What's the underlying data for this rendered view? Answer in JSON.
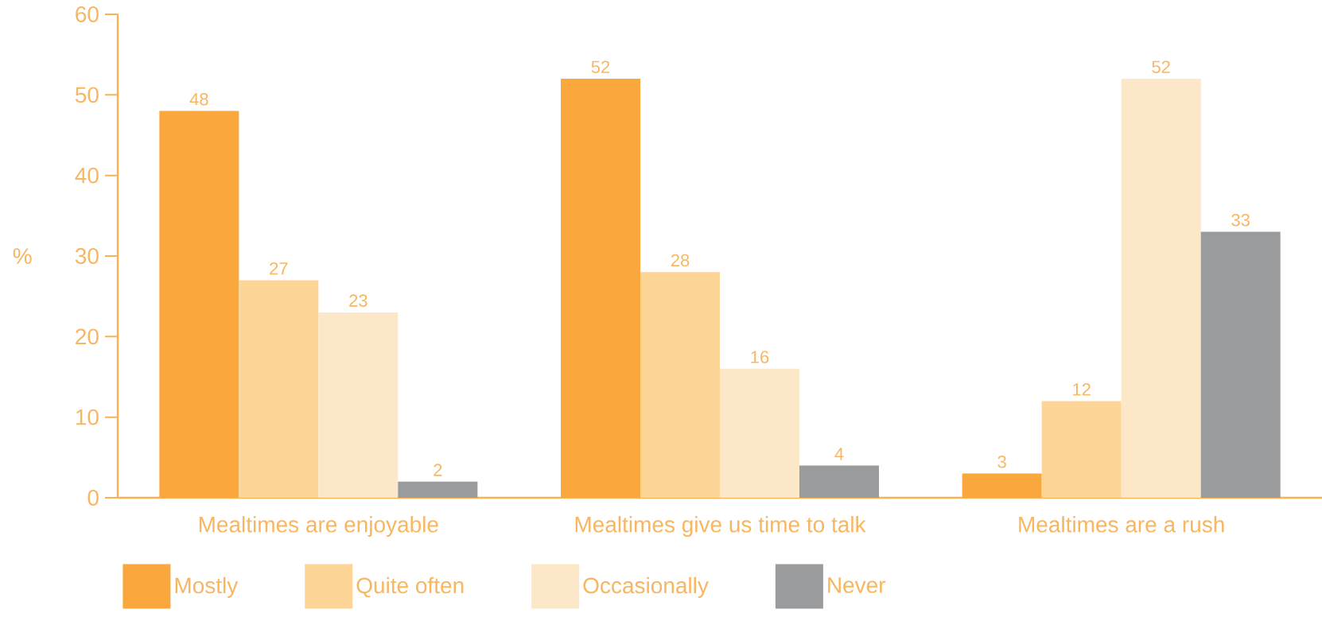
{
  "chart_data": {
    "type": "bar",
    "ylabel": "%",
    "categories": [
      "Mealtimes are enjoyable",
      "Mealtimes give us time to talk",
      "Mealtimes are a rush"
    ],
    "series": [
      {
        "name": "Mostly",
        "color": "#faa83e",
        "values": [
          48,
          52,
          3
        ]
      },
      {
        "name": "Quite often",
        "color": "#fdd597",
        "values": [
          27,
          28,
          12
        ]
      },
      {
        "name": "Occasionally",
        "color": "#fde7c9",
        "values": [
          23,
          16,
          52
        ]
      },
      {
        "name": "Never",
        "color": "#9a9b9d",
        "values": [
          2,
          4,
          33
        ]
      }
    ],
    "ylim": [
      0,
      60
    ],
    "yticks": [
      0,
      10,
      20,
      30,
      40,
      50,
      60
    ],
    "data_labels": true,
    "legend": "bottom"
  }
}
